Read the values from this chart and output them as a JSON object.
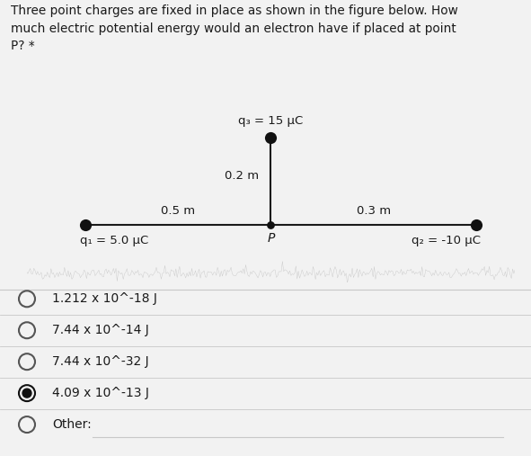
{
  "title_text": "Three point charges are fixed in place as shown in the figure below. How\nmuch electric potential energy would an electron have if placed at point\nP? *",
  "background_color": "#f2f2f2",
  "q3_label": "q₃ = 15 μC",
  "q1_label": "q₁ = 5.0 μC",
  "q2_label": "q₂ = -10 μC",
  "dist_left": "0.5 m",
  "dist_top": "0.2 m",
  "dist_right": "0.3 m",
  "point_label": "P",
  "options": [
    {
      "text": "1.212 x 10^-18 J",
      "selected": false
    },
    {
      "text": "7.44 x 10^-14 J",
      "selected": false
    },
    {
      "text": "7.44 x 10^-32 J",
      "selected": false
    },
    {
      "text": "4.09 x 10^-13 J",
      "selected": true
    },
    {
      "text": "Other:",
      "selected": false
    }
  ],
  "line_color": "#1a1a1a",
  "dot_color": "#111111",
  "text_color": "#1a1a1a",
  "separator_color": "#c8c8c8",
  "noise_color": "#888888"
}
